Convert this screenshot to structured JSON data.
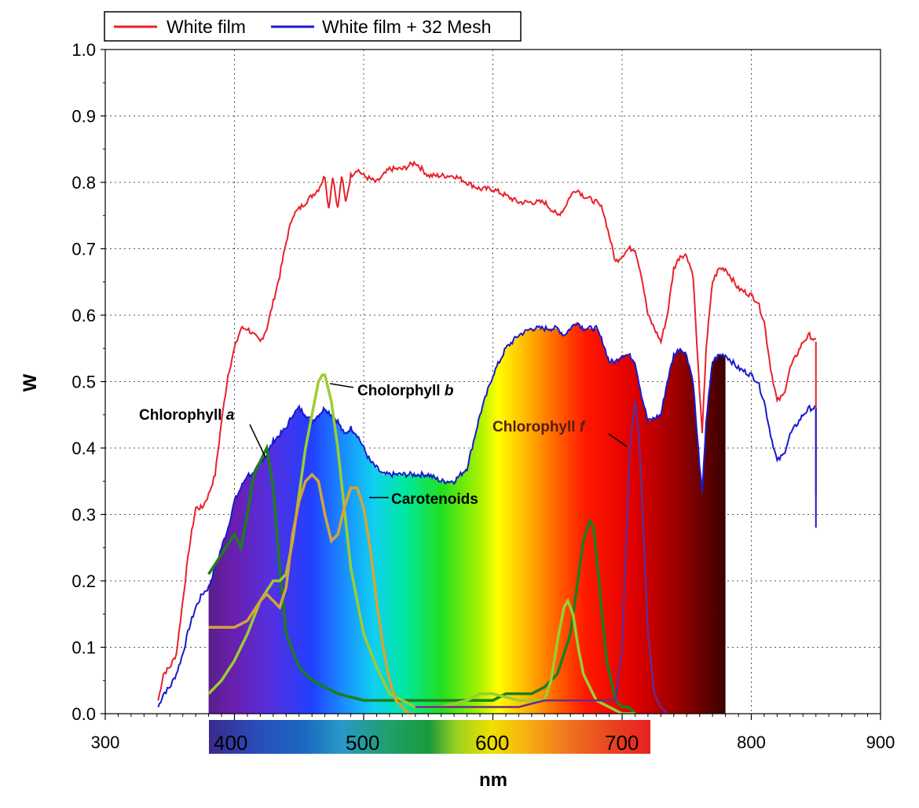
{
  "chart_data": {
    "type": "line",
    "xlabel": "nm",
    "ylabel": "W",
    "xlim": [
      300,
      900
    ],
    "ylim": [
      0.0,
      1.0
    ],
    "x_ticks": [
      "300",
      "400",
      "500",
      "600",
      "700",
      "800",
      "900"
    ],
    "y_ticks": [
      "0.0",
      "0.1",
      "0.2",
      "0.3",
      "0.4",
      "0.5",
      "0.6",
      "0.7",
      "0.8",
      "0.9",
      "1.0"
    ],
    "grid": true,
    "legend_position": "top-left",
    "series": [
      {
        "name": "White film",
        "color": "#e8222a",
        "x": [
          341,
          345,
          350,
          355,
          360,
          365,
          370,
          375,
          380,
          385,
          390,
          395,
          400,
          405,
          410,
          415,
          420,
          425,
          430,
          435,
          440,
          445,
          450,
          455,
          460,
          465,
          470,
          473,
          476,
          480,
          483,
          486,
          490,
          495,
          500,
          510,
          520,
          530,
          540,
          545,
          550,
          560,
          570,
          580,
          590,
          600,
          610,
          620,
          630,
          640,
          650,
          655,
          660,
          665,
          670,
          680,
          685,
          690,
          695,
          700,
          705,
          710,
          715,
          720,
          730,
          735,
          740,
          745,
          750,
          755,
          758,
          762,
          765,
          770,
          775,
          780,
          790,
          800,
          805,
          810,
          815,
          820,
          825,
          830,
          840,
          845,
          850
        ],
        "y": [
          0.02,
          0.06,
          0.07,
          0.09,
          0.17,
          0.25,
          0.31,
          0.31,
          0.33,
          0.36,
          0.44,
          0.51,
          0.55,
          0.58,
          0.58,
          0.57,
          0.56,
          0.58,
          0.62,
          0.66,
          0.71,
          0.75,
          0.76,
          0.77,
          0.78,
          0.79,
          0.81,
          0.76,
          0.81,
          0.76,
          0.81,
          0.77,
          0.81,
          0.82,
          0.81,
          0.8,
          0.82,
          0.82,
          0.83,
          0.82,
          0.81,
          0.81,
          0.81,
          0.8,
          0.79,
          0.79,
          0.78,
          0.77,
          0.77,
          0.77,
          0.75,
          0.76,
          0.78,
          0.79,
          0.78,
          0.77,
          0.76,
          0.72,
          0.68,
          0.69,
          0.7,
          0.7,
          0.66,
          0.6,
          0.56,
          0.6,
          0.67,
          0.69,
          0.69,
          0.66,
          0.55,
          0.42,
          0.55,
          0.65,
          0.67,
          0.67,
          0.64,
          0.63,
          0.62,
          0.59,
          0.52,
          0.47,
          0.48,
          0.52,
          0.56,
          0.57,
          0.56
        ]
      },
      {
        "name": "White film + 32 Mesh",
        "color": "#1a1acc",
        "x": [
          341,
          345,
          350,
          355,
          360,
          365,
          370,
          375,
          380,
          385,
          390,
          395,
          400,
          405,
          410,
          415,
          420,
          425,
          430,
          435,
          440,
          445,
          450,
          455,
          460,
          465,
          470,
          475,
          480,
          485,
          490,
          495,
          500,
          505,
          510,
          515,
          520,
          530,
          540,
          550,
          560,
          570,
          575,
          580,
          585,
          590,
          595,
          600,
          610,
          620,
          630,
          640,
          650,
          655,
          660,
          665,
          670,
          680,
          685,
          690,
          695,
          700,
          705,
          710,
          715,
          720,
          730,
          735,
          740,
          745,
          750,
          755,
          758,
          762,
          765,
          770,
          775,
          780,
          790,
          800,
          805,
          810,
          815,
          820,
          825,
          830,
          840,
          845,
          850
        ],
        "y": [
          0.01,
          0.03,
          0.04,
          0.06,
          0.09,
          0.13,
          0.16,
          0.18,
          0.19,
          0.22,
          0.25,
          0.28,
          0.32,
          0.34,
          0.36,
          0.36,
          0.38,
          0.39,
          0.41,
          0.42,
          0.43,
          0.45,
          0.46,
          0.45,
          0.44,
          0.45,
          0.46,
          0.45,
          0.44,
          0.42,
          0.43,
          0.42,
          0.4,
          0.38,
          0.37,
          0.36,
          0.36,
          0.36,
          0.36,
          0.36,
          0.35,
          0.35,
          0.36,
          0.37,
          0.41,
          0.45,
          0.48,
          0.51,
          0.55,
          0.57,
          0.58,
          0.58,
          0.58,
          0.57,
          0.58,
          0.59,
          0.58,
          0.58,
          0.56,
          0.53,
          0.53,
          0.54,
          0.54,
          0.53,
          0.48,
          0.44,
          0.45,
          0.5,
          0.54,
          0.55,
          0.54,
          0.5,
          0.42,
          0.33,
          0.44,
          0.53,
          0.54,
          0.54,
          0.52,
          0.51,
          0.5,
          0.47,
          0.42,
          0.38,
          0.39,
          0.42,
          0.45,
          0.46,
          0.46
        ]
      },
      {
        "name": "Chlorophyll a",
        "color": "#1e7d1e",
        "x": [
          380,
          390,
          400,
          405,
          410,
          415,
          420,
          425,
          430,
          435,
          440,
          450,
          460,
          480,
          500,
          520,
          540,
          560,
          580,
          600,
          610,
          620,
          630,
          640,
          650,
          660,
          665,
          670,
          675,
          678,
          682,
          688,
          695,
          700,
          705,
          710
        ],
        "y": [
          0.21,
          0.24,
          0.27,
          0.25,
          0.3,
          0.36,
          0.38,
          0.4,
          0.34,
          0.22,
          0.12,
          0.07,
          0.05,
          0.03,
          0.02,
          0.02,
          0.02,
          0.02,
          0.02,
          0.02,
          0.03,
          0.03,
          0.03,
          0.04,
          0.06,
          0.12,
          0.19,
          0.26,
          0.29,
          0.28,
          0.2,
          0.08,
          0.02,
          0.01,
          0.01,
          0.0
        ]
      },
      {
        "name": "Cholorphyll b",
        "color": "#9acd32",
        "x": [
          380,
          390,
          400,
          410,
          420,
          430,
          435,
          440,
          445,
          450,
          455,
          460,
          465,
          468,
          470,
          475,
          480,
          485,
          490,
          500,
          510,
          520,
          530,
          540,
          560,
          580,
          590,
          600,
          620,
          640,
          645,
          650,
          655,
          658,
          662,
          666,
          670,
          675,
          680,
          690,
          700,
          710
        ],
        "y": [
          0.03,
          0.05,
          0.08,
          0.12,
          0.17,
          0.2,
          0.2,
          0.21,
          0.26,
          0.33,
          0.4,
          0.45,
          0.5,
          0.51,
          0.51,
          0.47,
          0.4,
          0.31,
          0.22,
          0.12,
          0.07,
          0.03,
          0.02,
          0.01,
          0.01,
          0.02,
          0.03,
          0.03,
          0.02,
          0.02,
          0.05,
          0.11,
          0.16,
          0.17,
          0.15,
          0.1,
          0.06,
          0.04,
          0.02,
          0.01,
          0.0,
          0.0
        ]
      },
      {
        "name": "Carotenoids",
        "color": "#d4a43a",
        "x": [
          380,
          390,
          400,
          410,
          420,
          425,
          430,
          435,
          440,
          445,
          450,
          455,
          460,
          465,
          470,
          475,
          480,
          485,
          490,
          495,
          500,
          505,
          510,
          515,
          520,
          525,
          530,
          535,
          540
        ],
        "y": [
          0.13,
          0.13,
          0.13,
          0.14,
          0.17,
          0.18,
          0.17,
          0.16,
          0.19,
          0.27,
          0.32,
          0.35,
          0.36,
          0.35,
          0.3,
          0.26,
          0.27,
          0.31,
          0.34,
          0.34,
          0.31,
          0.25,
          0.17,
          0.1,
          0.05,
          0.02,
          0.01,
          0.0,
          0.0
        ]
      },
      {
        "name": "Chlorophyll f",
        "color": "#6a2a8c",
        "x": [
          540,
          560,
          580,
          600,
          620,
          640,
          660,
          680,
          690,
          695,
          700,
          703,
          706,
          710,
          713,
          716,
          720,
          725,
          730,
          735
        ],
        "y": [
          0.01,
          0.01,
          0.01,
          0.01,
          0.01,
          0.02,
          0.02,
          0.02,
          0.02,
          0.02,
          0.1,
          0.25,
          0.4,
          0.47,
          0.42,
          0.3,
          0.12,
          0.03,
          0.01,
          0.0
        ]
      }
    ],
    "annotations": [
      {
        "text": "Chlorophyll ",
        "italic": "a",
        "color": "#000000"
      },
      {
        "text": "Cholorphyll ",
        "italic": "b",
        "color": "#000000"
      },
      {
        "text": "Carotenoids",
        "italic": "",
        "color": "#000000"
      },
      {
        "text": "Chlorophyll ",
        "italic": "f",
        "color": "#5a1a1a"
      }
    ],
    "spectrum_bar_labels": [
      "400",
      "500",
      "600",
      "700"
    ],
    "spectrum_fill_range": [
      380,
      780
    ]
  }
}
